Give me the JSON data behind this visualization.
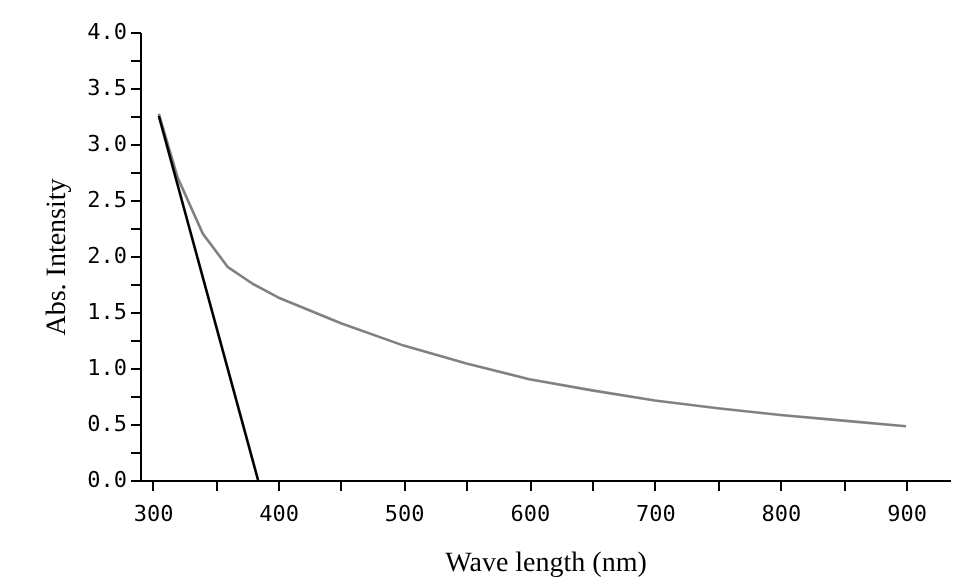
{
  "chart_data": {
    "type": "line",
    "xlabel": "Wave length (nm)",
    "ylabel": "Abs. Intensity",
    "xlim": [
      290,
      935
    ],
    "ylim": [
      0,
      4.0
    ],
    "xticks": [
      {
        "value": 300,
        "label": "300"
      },
      {
        "value": 350,
        "label": null
      },
      {
        "value": 400,
        "label": "400"
      },
      {
        "value": 450,
        "label": null
      },
      {
        "value": 500,
        "label": "500"
      },
      {
        "value": 550,
        "label": null
      },
      {
        "value": 600,
        "label": "600"
      },
      {
        "value": 650,
        "label": null
      },
      {
        "value": 700,
        "label": "700"
      },
      {
        "value": 750,
        "label": null
      },
      {
        "value": 800,
        "label": "800"
      },
      {
        "value": 850,
        "label": null
      },
      {
        "value": 900,
        "label": "900"
      }
    ],
    "yticks": [
      {
        "value": 0,
        "label": "0.0"
      },
      {
        "value": 0.25,
        "label": null
      },
      {
        "value": 0.5,
        "label": "0.5"
      },
      {
        "value": 0.75,
        "label": null
      },
      {
        "value": 1,
        "label": "1.0"
      },
      {
        "value": 1.25,
        "label": null
      },
      {
        "value": 1.5,
        "label": "1.5"
      },
      {
        "value": 1.75,
        "label": null
      },
      {
        "value": 2,
        "label": "2.0"
      },
      {
        "value": 2.25,
        "label": null
      },
      {
        "value": 2.5,
        "label": "2.5"
      },
      {
        "value": 2.75,
        "label": null
      },
      {
        "value": 3,
        "label": "3.0"
      },
      {
        "value": 3.25,
        "label": null
      },
      {
        "value": 3.5,
        "label": "3.5"
      },
      {
        "value": 3.75,
        "label": null
      },
      {
        "value": 4,
        "label": "4.0"
      }
    ],
    "grid": false,
    "marker": "none",
    "line_style": "solid",
    "series": [
      {
        "color": "#808080",
        "x": [
          305,
          320,
          340,
          360,
          380,
          400,
          450,
          500,
          550,
          600,
          650,
          700,
          750,
          800,
          850,
          900
        ],
        "values": [
          3.27,
          2.7,
          2.2,
          1.9,
          1.75,
          1.63,
          1.4,
          1.2,
          1.04,
          0.9,
          0.8,
          0.71,
          0.64,
          0.58,
          0.53,
          0.48
        ]
      },
      {
        "type": "line",
        "color": "#000000",
        "x": [
          305,
          384
        ],
        "values": [
          3.25,
          0
        ]
      }
    ]
  }
}
